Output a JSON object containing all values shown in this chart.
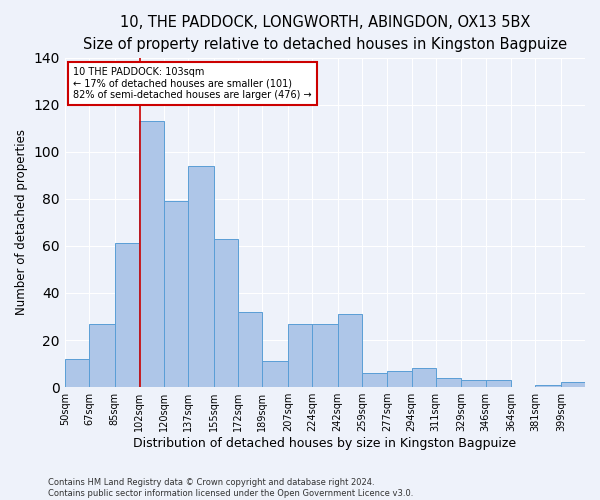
{
  "title": "10, THE PADDOCK, LONGWORTH, ABINGDON, OX13 5BX",
  "subtitle": "Size of property relative to detached houses in Kingston Bagpuize",
  "xlabel": "Distribution of detached houses by size in Kingston Bagpuize",
  "ylabel": "Number of detached properties",
  "categories": [
    "50sqm",
    "67sqm",
    "85sqm",
    "102sqm",
    "120sqm",
    "137sqm",
    "155sqm",
    "172sqm",
    "189sqm",
    "207sqm",
    "224sqm",
    "242sqm",
    "259sqm",
    "277sqm",
    "294sqm",
    "311sqm",
    "329sqm",
    "346sqm",
    "364sqm",
    "381sqm",
    "399sqm"
  ],
  "values": [
    12,
    27,
    61,
    113,
    79,
    94,
    63,
    32,
    11,
    27,
    27,
    31,
    6,
    7,
    8,
    4,
    3,
    3,
    0,
    1,
    2
  ],
  "bar_color": "#aec6e8",
  "bar_edge_color": "#5a9ed6",
  "property_line_x": 103,
  "bin_edges": [
    50,
    67,
    85,
    102,
    120,
    137,
    155,
    172,
    189,
    207,
    224,
    242,
    259,
    277,
    294,
    311,
    329,
    346,
    364,
    381,
    399,
    416
  ],
  "annotation_text": "10 THE PADDOCK: 103sqm\n← 17% of detached houses are smaller (101)\n82% of semi-detached houses are larger (476) →",
  "annotation_box_color": "#ffffff",
  "annotation_box_edge": "#cc0000",
  "red_line_color": "#cc0000",
  "footer": "Contains HM Land Registry data © Crown copyright and database right 2024.\nContains public sector information licensed under the Open Government Licence v3.0.",
  "bg_color": "#eef2fa",
  "ylim": [
    0,
    140
  ],
  "title_fontsize": 10.5,
  "ylabel_fontsize": 8.5,
  "xlabel_fontsize": 9,
  "tick_fontsize": 7,
  "annotation_fontsize": 7,
  "footer_fontsize": 6
}
